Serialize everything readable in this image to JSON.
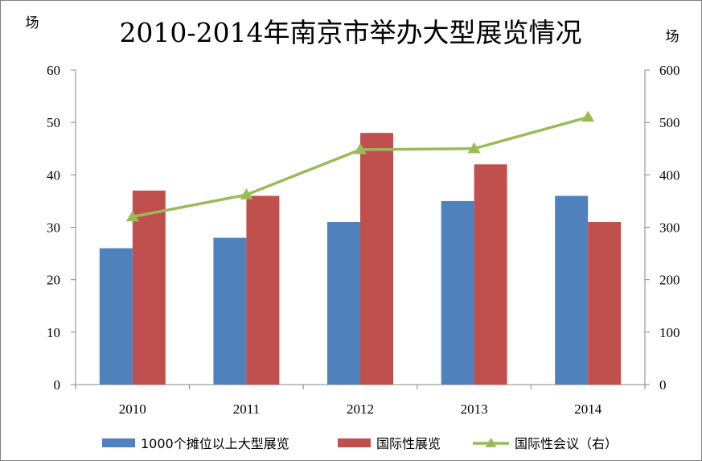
{
  "chart_data": {
    "type": "bar",
    "title": "2010-2014年南京市举办大型展览情况",
    "left_unit": "场",
    "right_unit": "场",
    "categories": [
      "2010",
      "2011",
      "2012",
      "2013",
      "2014"
    ],
    "y_left": {
      "min": 0,
      "max": 60,
      "ticks": [
        "0",
        "10",
        "20",
        "30",
        "40",
        "50",
        "60"
      ]
    },
    "y_right": {
      "min": 0,
      "max": 600,
      "ticks": [
        "0",
        "100",
        "200",
        "300",
        "400",
        "500",
        "600"
      ]
    },
    "series": [
      {
        "name": "1000个摊位以上大型展览",
        "type": "bar",
        "axis": "left",
        "color": "#4F81BD",
        "values": [
          26,
          28,
          31,
          35,
          36
        ]
      },
      {
        "name": "国际性展览",
        "type": "bar",
        "axis": "left",
        "color": "#C0504D",
        "values": [
          37,
          36,
          48,
          42,
          31
        ]
      },
      {
        "name": "国际性会议（右）",
        "type": "line",
        "axis": "right",
        "color": "#9BBB59",
        "marker": "triangle",
        "values": [
          320,
          362,
          448,
          450,
          510
        ]
      }
    ],
    "grid": false,
    "legend_position": "bottom"
  }
}
